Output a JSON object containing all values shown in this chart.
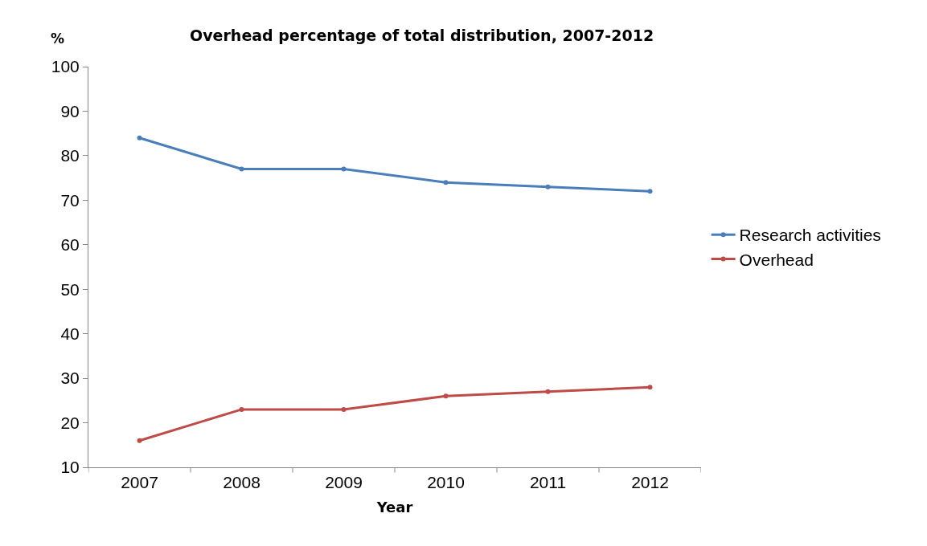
{
  "chart_data": {
    "type": "line",
    "title": "Overhead percentage of total distribution, 2007-2012",
    "xlabel": "Year",
    "ylabel": "%",
    "categories": [
      "2007",
      "2008",
      "2009",
      "2010",
      "2011",
      "2012"
    ],
    "series": [
      {
        "name": "Research activities",
        "color": "#4a7ebb",
        "values": [
          84,
          77,
          77,
          74,
          73,
          72
        ]
      },
      {
        "name": "Overhead",
        "color": "#be4b48",
        "values": [
          16,
          23,
          23,
          26,
          27,
          28
        ]
      }
    ],
    "ylim": [
      10,
      100
    ],
    "yticks": [
      10,
      20,
      30,
      40,
      50,
      60,
      70,
      80,
      90,
      100
    ],
    "grid": false,
    "legend": "right",
    "marker": "circle",
    "line_style": "solid"
  }
}
